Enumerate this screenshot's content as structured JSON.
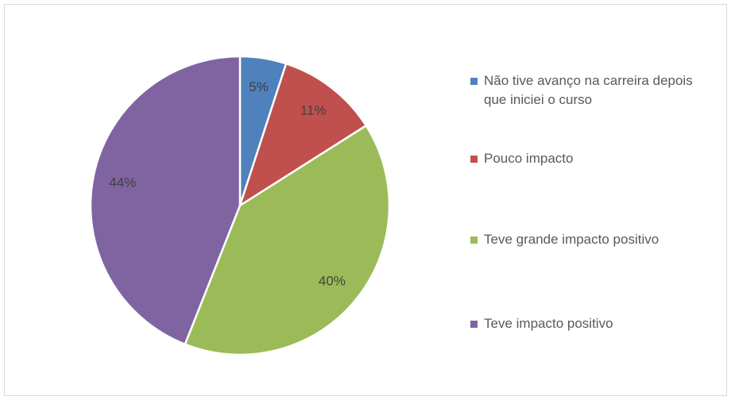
{
  "chart_data": {
    "type": "pie",
    "categories": [
      "Não tive avanço na carreira depois que iniciei o curso",
      "Pouco impacto",
      "Teve grande impacto positivo",
      "Teve impacto positivo"
    ],
    "values": [
      5,
      11,
      40,
      44
    ],
    "value_labels": [
      "5%",
      "11%",
      "40%",
      "44%"
    ],
    "colors": [
      "#4f81bd",
      "#c0504d",
      "#9bbb59",
      "#8064a2"
    ],
    "legend": "right"
  }
}
